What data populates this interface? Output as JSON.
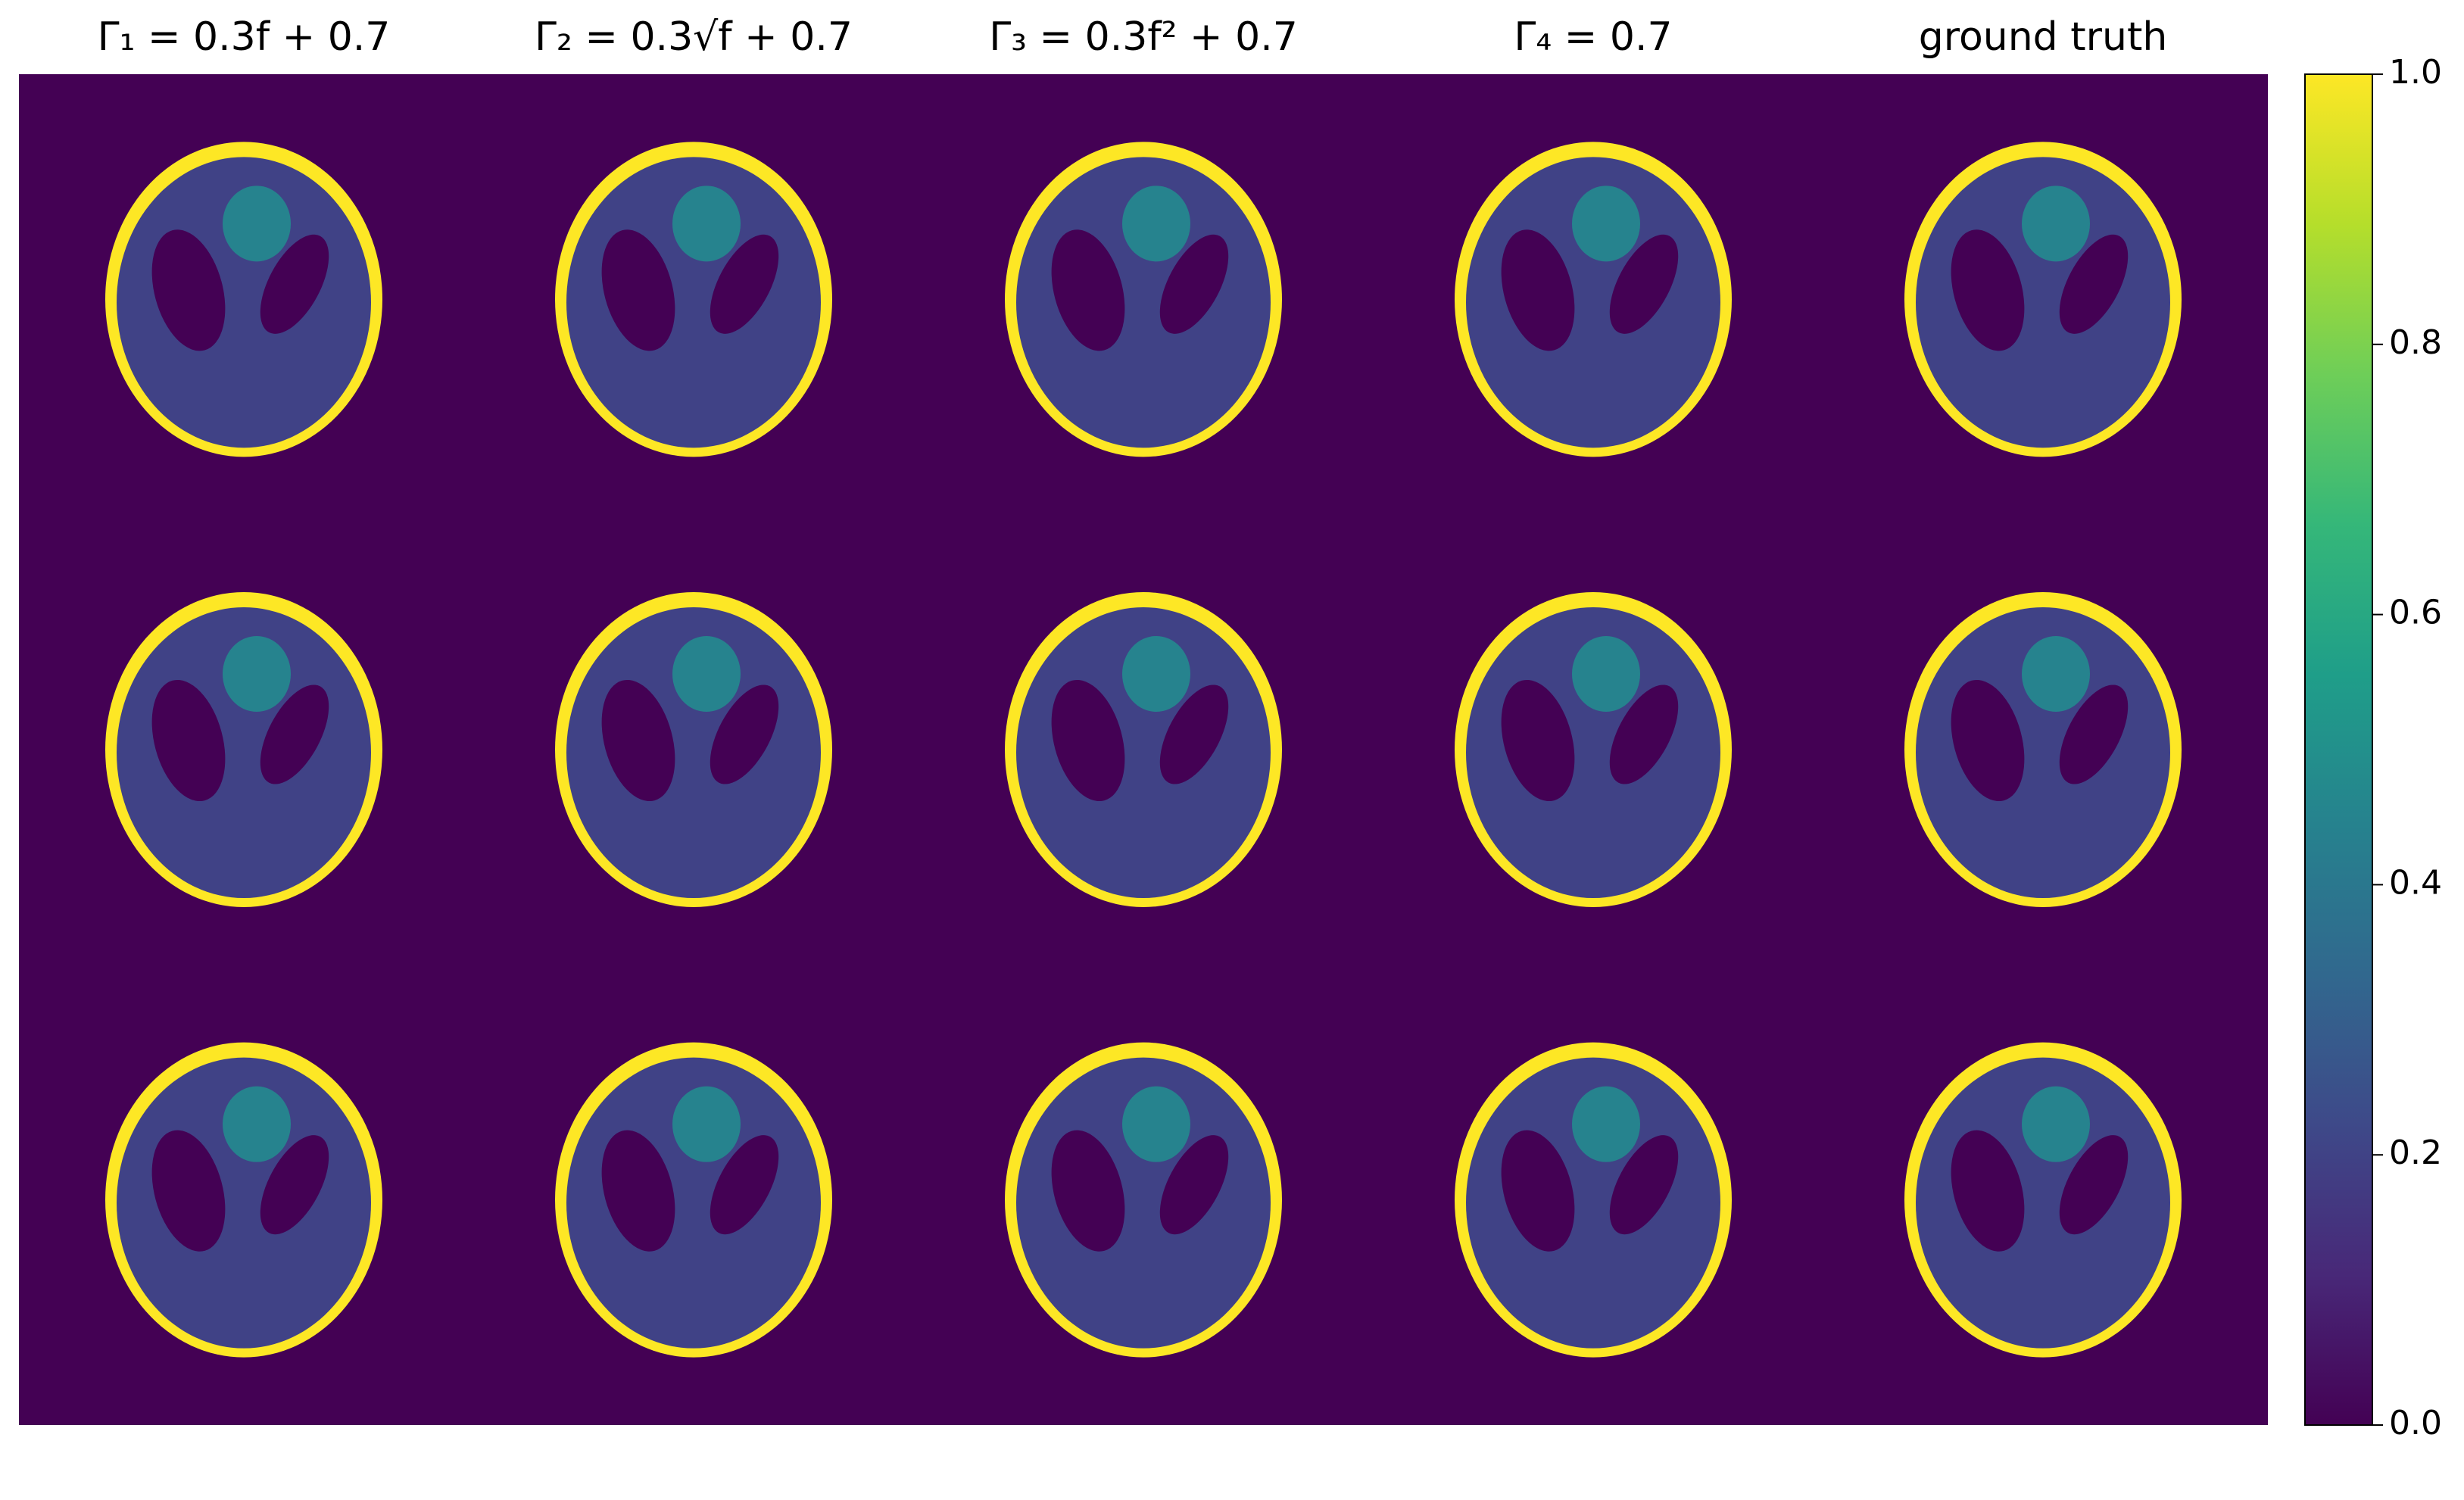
{
  "chart_data": {
    "type": "image-grid",
    "column_titles": [
      "Γ₁ = 0.3f + 0.7",
      "Γ₂ = 0.3√f + 0.7",
      "Γ₃ = 0.3f² + 0.7",
      "Γ₄ = 0.7",
      "ground truth"
    ],
    "rows": 3,
    "region_values": [
      0,
      1,
      0.2,
      0,
      0.45
    ],
    "colormap": [
      "#440154",
      "#482878",
      "#3e4989",
      "#31688e",
      "#26828e",
      "#1f9e89",
      "#35b779",
      "#6ece58",
      "#b5de2b",
      "#fde725"
    ],
    "clim": [
      0,
      1
    ],
    "cticks": [
      {
        "value": 0,
        "label": "0.0"
      },
      0.2,
      0.4,
      0.6,
      0.8,
      {
        "value": 1,
        "label": "1.0"
      }
    ]
  }
}
